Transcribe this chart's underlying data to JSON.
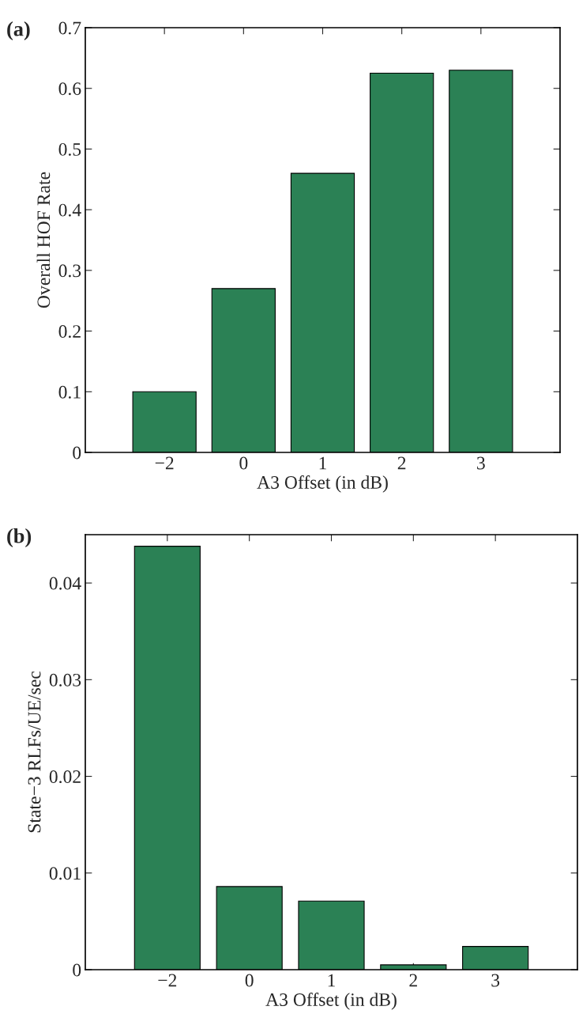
{
  "chart_data": [
    {
      "type": "bar",
      "title": "(a)",
      "categories": [
        "−2",
        "0",
        "1",
        "2",
        "3"
      ],
      "values": [
        0.1,
        0.27,
        0.46,
        0.625,
        0.63
      ],
      "color": "#2b8155",
      "xlabel": "A3 Offset (in dB)",
      "ylabel": "Overall HOF Rate",
      "ylim": [
        0,
        0.7
      ],
      "yticks": [
        0,
        0.1,
        0.2,
        0.3,
        0.4,
        0.5,
        0.6,
        0.7
      ],
      "grid": false,
      "legend": false
    },
    {
      "type": "bar",
      "title": "(b)",
      "categories": [
        "−2",
        "0",
        "1",
        "2",
        "3"
      ],
      "values": [
        0.0438,
        0.0086,
        0.0071,
        0.0005,
        0.0024
      ],
      "color": "#2b8155",
      "xlabel": "A3 Offset (in dB)",
      "ylabel": "State−3 RLFs/UE/sec",
      "ylim": [
        0,
        0.045
      ],
      "yticks": [
        0,
        0.01,
        0.02,
        0.03,
        0.04
      ],
      "grid": false,
      "legend": false
    }
  ]
}
